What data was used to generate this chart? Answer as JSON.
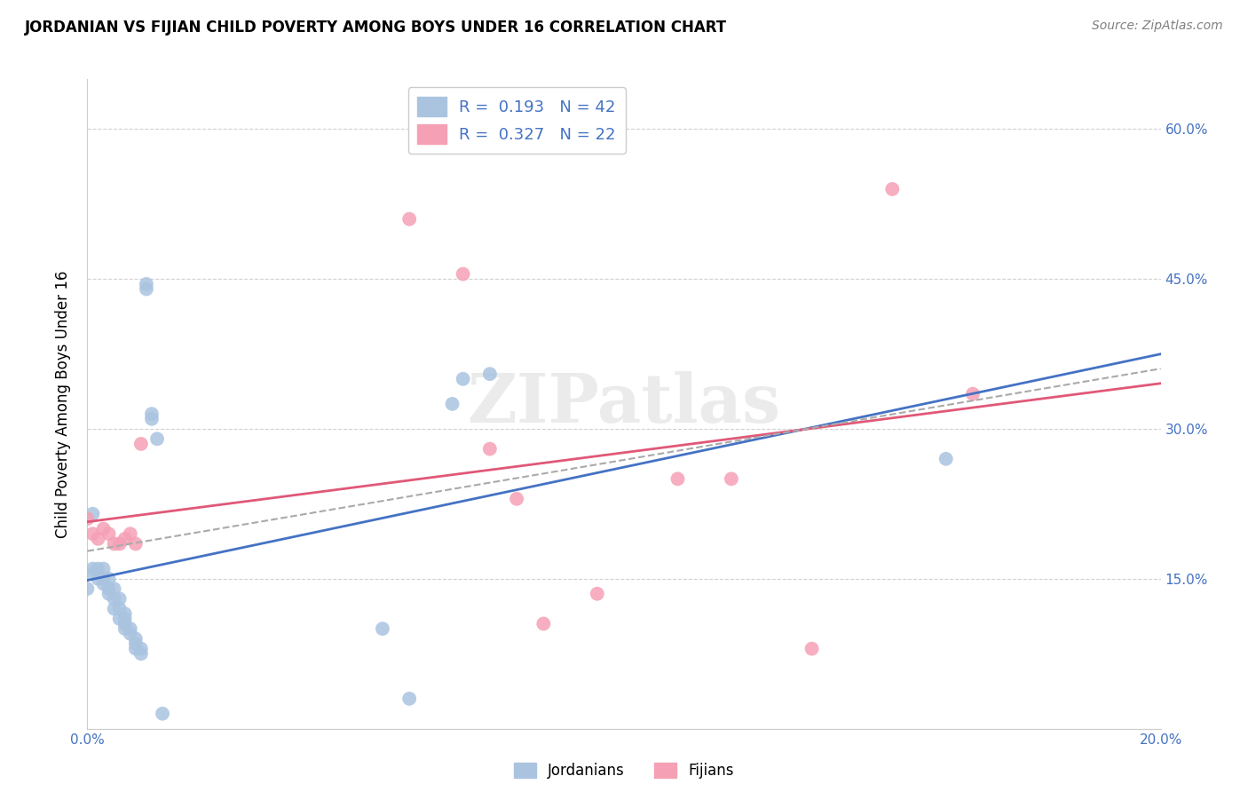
{
  "title": "JORDANIAN VS FIJIAN CHILD POVERTY AMONG BOYS UNDER 16 CORRELATION CHART",
  "source": "Source: ZipAtlas.com",
  "ylabel": "Child Poverty Among Boys Under 16",
  "xlim": [
    0.0,
    0.2
  ],
  "ylim": [
    0.0,
    0.65
  ],
  "background_color": "#ffffff",
  "grid_color": "#d0d0d0",
  "jordanian_color": "#aac4e0",
  "fijian_color": "#f5a0b5",
  "jordanian_line_color": "#4472c4",
  "fijian_line_color": "#e05878",
  "dashed_line_color": "#aaaaaa",
  "jordanian_R": 0.193,
  "jordanian_N": 42,
  "fijian_R": 0.327,
  "fijian_N": 22,
  "tick_label_color": "#4472c4",
  "jordanians_x": [
    0.0,
    0.001,
    0.001,
    0.001,
    0.002,
    0.002,
    0.002,
    0.003,
    0.003,
    0.003,
    0.004,
    0.004,
    0.004,
    0.005,
    0.005,
    0.005,
    0.006,
    0.006,
    0.006,
    0.007,
    0.007,
    0.007,
    0.007,
    0.008,
    0.008,
    0.009,
    0.009,
    0.009,
    0.01,
    0.01,
    0.011,
    0.011,
    0.012,
    0.012,
    0.013,
    0.014,
    0.055,
    0.06,
    0.068,
    0.07,
    0.075,
    0.16
  ],
  "jordanians_y": [
    0.14,
    0.155,
    0.16,
    0.215,
    0.15,
    0.155,
    0.16,
    0.145,
    0.15,
    0.16,
    0.135,
    0.14,
    0.15,
    0.12,
    0.13,
    0.14,
    0.11,
    0.12,
    0.13,
    0.1,
    0.105,
    0.11,
    0.115,
    0.095,
    0.1,
    0.08,
    0.085,
    0.09,
    0.075,
    0.08,
    0.44,
    0.445,
    0.31,
    0.315,
    0.29,
    0.015,
    0.1,
    0.03,
    0.325,
    0.35,
    0.355,
    0.27
  ],
  "fijians_x": [
    0.0,
    0.001,
    0.002,
    0.003,
    0.004,
    0.005,
    0.006,
    0.007,
    0.008,
    0.009,
    0.01,
    0.06,
    0.07,
    0.075,
    0.08,
    0.085,
    0.095,
    0.11,
    0.12,
    0.135,
    0.15,
    0.165
  ],
  "fijians_y": [
    0.21,
    0.195,
    0.19,
    0.2,
    0.195,
    0.185,
    0.185,
    0.19,
    0.195,
    0.185,
    0.285,
    0.51,
    0.455,
    0.28,
    0.23,
    0.105,
    0.135,
    0.25,
    0.25,
    0.08,
    0.54,
    0.335
  ],
  "watermark_text": "ZIPatlas",
  "legend_label1": "R =  0.193   N = 42",
  "legend_label2": "R =  0.327   N = 22",
  "bottom_legend": [
    "Jordanians",
    "Fijians"
  ]
}
